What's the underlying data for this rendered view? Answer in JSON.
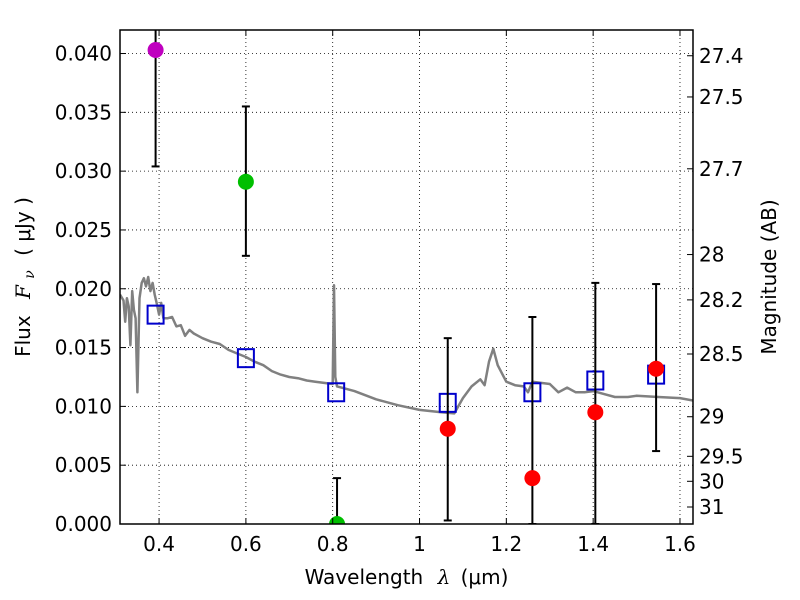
{
  "chart_data": {
    "type": "scatter",
    "xlabel": "Wavelength",
    "xlabel_symbol": "λ",
    "xlabel_unit": "(μm)",
    "ylabel": "Flux",
    "ylabel_symbol": "F",
    "ylabel_subscript": "ν",
    "ylabel_unit": "( μJy )",
    "y2label": "Magnitude (AB)",
    "xlim": [
      0.31,
      1.63
    ],
    "ylim": [
      0.0,
      0.042
    ],
    "grid": true,
    "x_ticks": [
      0.4,
      0.6,
      0.8,
      1.0,
      1.2,
      1.4,
      1.6
    ],
    "x_tick_labels": [
      "0.4",
      "0.6",
      "0.8",
      "1",
      "1.2",
      "1.4",
      "1.6"
    ],
    "y_ticks": [
      0.0,
      0.005,
      0.01,
      0.015,
      0.02,
      0.025,
      0.03,
      0.035,
      0.04
    ],
    "y_tick_labels": [
      "0.000",
      "0.005",
      "0.010",
      "0.015",
      "0.020",
      "0.025",
      "0.030",
      "0.035",
      "0.040"
    ],
    "mag_ticks": [
      27.4,
      27.5,
      27.7,
      28,
      28.2,
      28.5,
      29,
      29.5,
      30,
      31
    ],
    "mag_tick_labels": [
      "27.4",
      "27.5",
      "27.7",
      "28",
      "28.2",
      "28.5",
      "29",
      "29.5",
      "30",
      "31"
    ],
    "series": [
      {
        "name": "observed-flux",
        "kind": "points-with-errorbars",
        "points": [
          {
            "x": 0.392,
            "y": 0.0403,
            "err_low": 0.0099,
            "err_high": 0.006,
            "color": "#bf00bf"
          },
          {
            "x": 0.6,
            "y": 0.0291,
            "err_low": 0.0063,
            "err_high": 0.0064,
            "color": "#00bf00"
          },
          {
            "x": 0.81,
            "y": 0.0,
            "err_low": 0.0,
            "err_high": 0.0039,
            "color": "#00bf00"
          },
          {
            "x": 1.065,
            "y": 0.0081,
            "err_low": 0.0078,
            "err_high": 0.0077,
            "color": "#ff0000"
          },
          {
            "x": 1.26,
            "y": 0.0039,
            "err_low": 0.0039,
            "err_high": 0.0137,
            "color": "#ff0000"
          },
          {
            "x": 1.405,
            "y": 0.0095,
            "err_low": 0.0095,
            "err_high": 0.011,
            "color": "#ff0000"
          },
          {
            "x": 1.545,
            "y": 0.0132,
            "err_low": 0.007,
            "err_high": 0.0072,
            "color": "#ff0000"
          }
        ]
      },
      {
        "name": "model-photometry",
        "kind": "open-squares",
        "color": "#0000cc",
        "x": [
          0.392,
          0.6,
          0.808,
          1.065,
          1.26,
          1.405,
          1.545
        ],
        "y": [
          0.0178,
          0.0141,
          0.0112,
          0.0103,
          0.0112,
          0.0122,
          0.0127
        ]
      },
      {
        "name": "model-spectrum",
        "kind": "line",
        "color": "#808080",
        "x": [
          0.31,
          0.318,
          0.322,
          0.326,
          0.33,
          0.334,
          0.338,
          0.342,
          0.346,
          0.35,
          0.355,
          0.36,
          0.365,
          0.37,
          0.375,
          0.38,
          0.385,
          0.39,
          0.395,
          0.4,
          0.405,
          0.41,
          0.42,
          0.43,
          0.44,
          0.45,
          0.46,
          0.47,
          0.48,
          0.49,
          0.5,
          0.52,
          0.54,
          0.56,
          0.58,
          0.6,
          0.62,
          0.64,
          0.66,
          0.68,
          0.7,
          0.72,
          0.74,
          0.76,
          0.78,
          0.8,
          0.803,
          0.806,
          0.81,
          0.82,
          0.85,
          0.9,
          0.95,
          1.0,
          1.05,
          1.08,
          1.1,
          1.12,
          1.14,
          1.15,
          1.16,
          1.17,
          1.18,
          1.2,
          1.22,
          1.24,
          1.25,
          1.26,
          1.28,
          1.3,
          1.32,
          1.34,
          1.36,
          1.38,
          1.4,
          1.42,
          1.45,
          1.48,
          1.5,
          1.55,
          1.6,
          1.63
        ],
        "y": [
          0.0195,
          0.019,
          0.0172,
          0.0192,
          0.0185,
          0.0152,
          0.0198,
          0.0182,
          0.0175,
          0.0112,
          0.0192,
          0.0205,
          0.0209,
          0.0202,
          0.021,
          0.0198,
          0.0205,
          0.0195,
          0.0187,
          0.0178,
          0.0188,
          0.0175,
          0.0175,
          0.0176,
          0.0168,
          0.0169,
          0.016,
          0.0165,
          0.0162,
          0.016,
          0.0158,
          0.0155,
          0.0153,
          0.0148,
          0.0145,
          0.0142,
          0.0138,
          0.0135,
          0.013,
          0.0127,
          0.0125,
          0.0124,
          0.0122,
          0.0121,
          0.012,
          0.0119,
          0.0203,
          0.0125,
          0.0117,
          0.0116,
          0.0113,
          0.0106,
          0.0101,
          0.0097,
          0.0095,
          0.0094,
          0.0107,
          0.0117,
          0.0123,
          0.0118,
          0.0138,
          0.0149,
          0.0135,
          0.0121,
          0.0118,
          0.0117,
          0.0112,
          0.0121,
          0.012,
          0.0119,
          0.0112,
          0.0116,
          0.0112,
          0.0112,
          0.0113,
          0.0111,
          0.0108,
          0.0108,
          0.0109,
          0.0108,
          0.0107,
          0.0105
        ]
      }
    ]
  }
}
